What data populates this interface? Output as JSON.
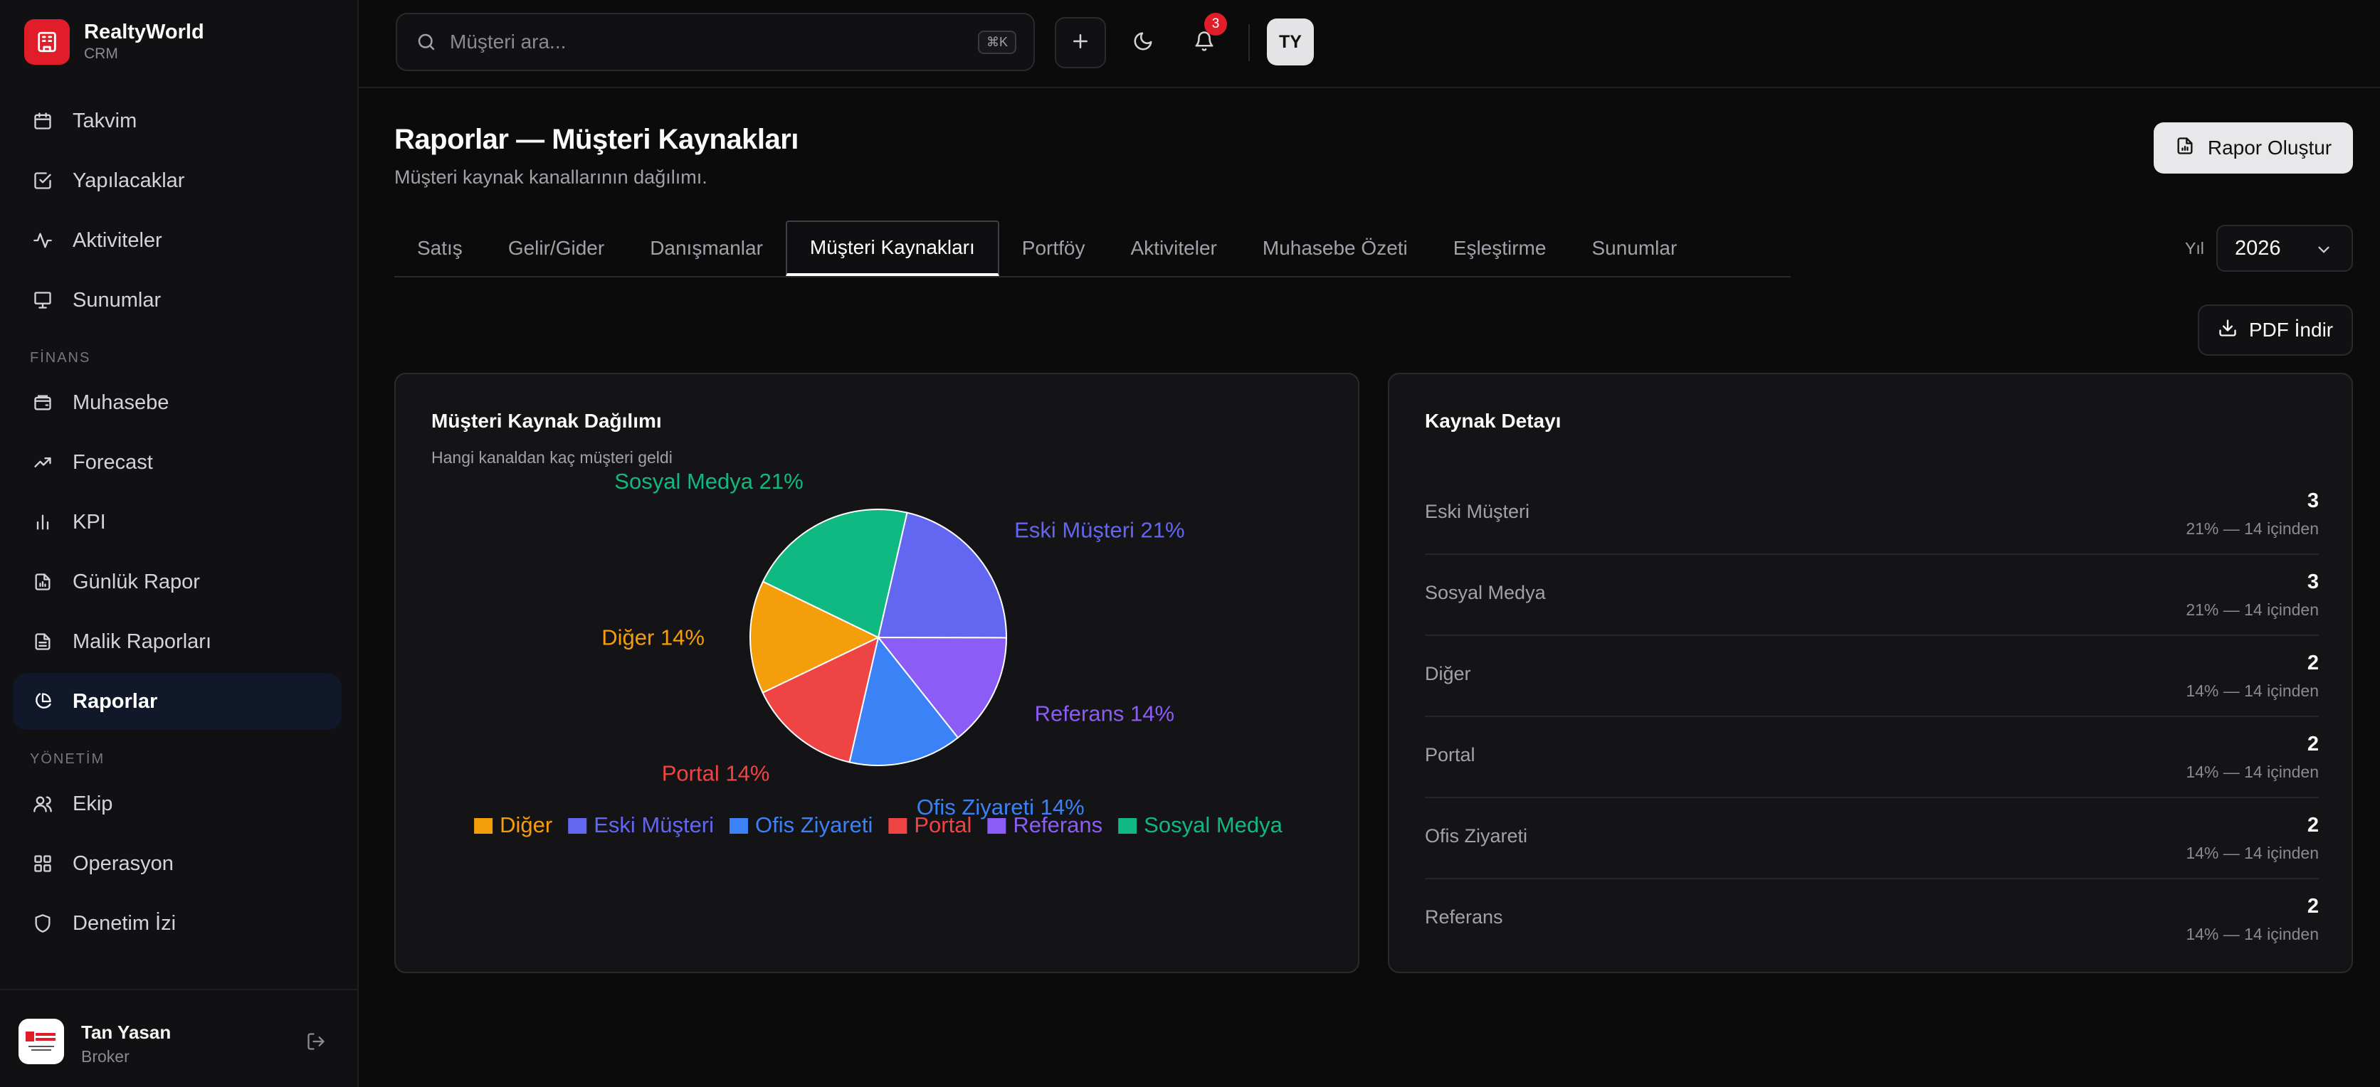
{
  "brand": {
    "name": "RealtyWorld",
    "sub": "CRM"
  },
  "sidebar": {
    "items_top": [
      {
        "label": "Takvim",
        "icon": "calendar-icon"
      },
      {
        "label": "Yapılacaklar",
        "icon": "checkbox-icon"
      },
      {
        "label": "Aktiviteler",
        "icon": "activity-icon"
      },
      {
        "label": "Sunumlar",
        "icon": "presentation-icon"
      }
    ],
    "section_finance": "FİNANS",
    "items_finance": [
      {
        "label": "Muhasebe",
        "icon": "wallet-icon"
      },
      {
        "label": "Forecast",
        "icon": "trending-up-icon"
      },
      {
        "label": "KPI",
        "icon": "bar-chart-icon"
      },
      {
        "label": "Günlük Rapor",
        "icon": "document-icon"
      },
      {
        "label": "Malik Raporları",
        "icon": "file-text-icon"
      },
      {
        "label": "Raporlar",
        "icon": "pie-chart-icon",
        "active": true
      }
    ],
    "section_management": "YÖNETİM",
    "items_management": [
      {
        "label": "Ekip",
        "icon": "users-icon"
      },
      {
        "label": "Operasyon",
        "icon": "grid-icon"
      },
      {
        "label": "Denetim İzi",
        "icon": "shield-icon"
      }
    ],
    "user": {
      "name": "Tan Yasan",
      "role": "Broker"
    }
  },
  "topbar": {
    "search_placeholder": "Müşteri ara...",
    "shortcut": "⌘K",
    "notifications_count": "3",
    "avatar_initials": "TY"
  },
  "page": {
    "title": "Raporlar — Müşteri Kaynakları",
    "subtitle": "Müşteri kaynak kanallarının dağılımı.",
    "create_report_label": "Rapor Oluştur",
    "tabs": [
      "Satış",
      "Gelir/Gider",
      "Danışmanlar",
      "Müşteri Kaynakları",
      "Portföy",
      "Aktiviteler",
      "Muhasebe Özeti",
      "Eşleştirme",
      "Sunumlar"
    ],
    "active_tab": 3,
    "year_label": "Yıl",
    "year_value": "2026",
    "pdf_label": "PDF İndir"
  },
  "chart_card": {
    "title": "Müşteri Kaynak Dağılımı",
    "subtitle": "Hangi kanaldan kaç müşteri geldi"
  },
  "chart_data": {
    "type": "pie",
    "slices": [
      {
        "label": "Eski Müşteri",
        "value": 3,
        "percent": "21%",
        "color": "#6366f1"
      },
      {
        "label": "Referans",
        "value": 2,
        "percent": "14%",
        "color": "#8b5cf6"
      },
      {
        "label": "Ofis Ziyareti",
        "value": 2,
        "percent": "14%",
        "color": "#3b82f6"
      },
      {
        "label": "Portal",
        "value": 2,
        "percent": "14%",
        "color": "#ef4444"
      },
      {
        "label": "Diğer",
        "value": 2,
        "percent": "14%",
        "color": "#f59e0b"
      },
      {
        "label": "Sosyal Medya",
        "value": 3,
        "percent": "21%",
        "color": "#10b981"
      }
    ],
    "legend": [
      "Diğer",
      "Eski Müşteri",
      "Ofis Ziyareti",
      "Portal",
      "Referans",
      "Sosyal Medya"
    ],
    "legend_position": "bottom"
  },
  "detail_card": {
    "title": "Kaynak Detayı",
    "rows": [
      {
        "name": "Eski Müşteri",
        "count": "3",
        "pct": "21% — 14 içinden"
      },
      {
        "name": "Sosyal Medya",
        "count": "3",
        "pct": "21% — 14 içinden"
      },
      {
        "name": "Diğer",
        "count": "2",
        "pct": "14% — 14 içinden"
      },
      {
        "name": "Portal",
        "count": "2",
        "pct": "14% — 14 içinden"
      },
      {
        "name": "Ofis Ziyareti",
        "count": "2",
        "pct": "14% — 14 içinden"
      },
      {
        "name": "Referans",
        "count": "2",
        "pct": "14% — 14 içinden"
      }
    ]
  }
}
